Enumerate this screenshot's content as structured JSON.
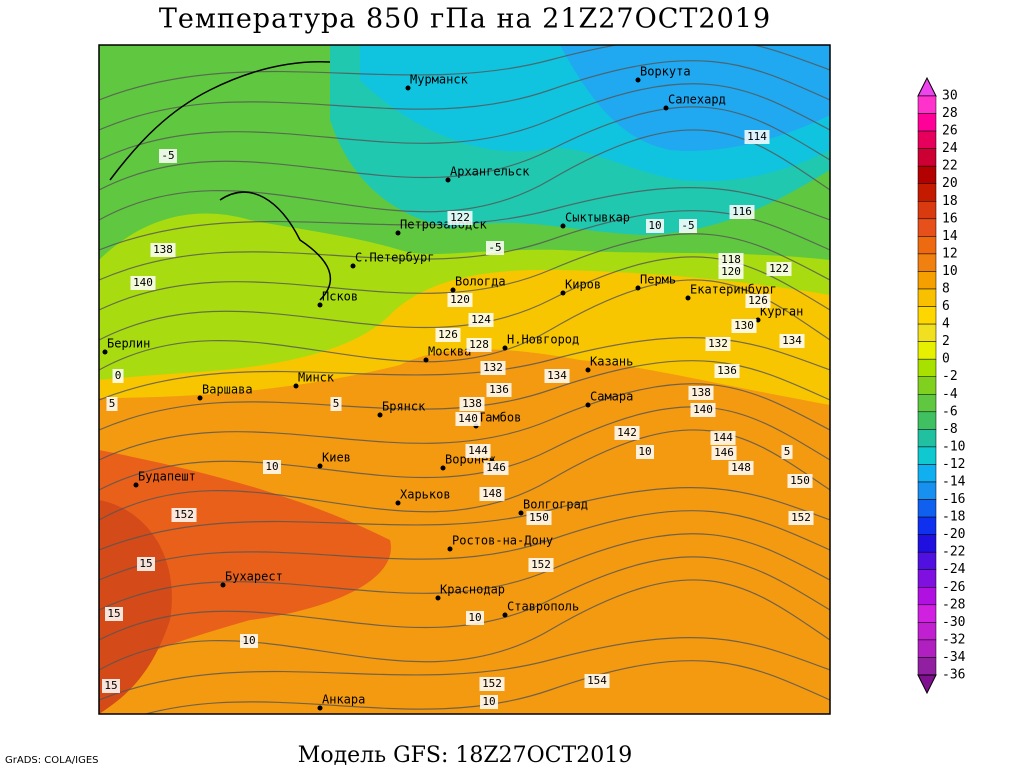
{
  "title": "Температура 850 гПа на 21Z27OCT2019",
  "footer": "Модель GFS: 18Z27OCT2019",
  "credit": "GrADS: COLA/IGES",
  "cities": [
    "Мурманск",
    "Воркута",
    "Салехард",
    "Архангельск",
    "Петрозаводск",
    "Сыктывкар",
    "С.Петербург",
    "Вологда",
    "Киров",
    "Пермь",
    "Екатеринбург",
    "Курган",
    "Псков",
    "Берлин",
    "Москва",
    "Н.Новгород",
    "Казань",
    "Минск",
    "Варшава",
    "Брянск",
    "Тамбов",
    "Самара",
    "Будапешт",
    "Киев",
    "Воронеж",
    "Харьков",
    "Волгоград",
    "Ростов-на-Дону",
    "Бухарест",
    "Краснодар",
    "Ставрополь",
    "Анкара"
  ],
  "contour_labels": [
    "-5",
    "138",
    "140",
    "122",
    "-5",
    "10",
    "-5",
    "116",
    "114",
    "118",
    "120",
    "122",
    "120",
    "124",
    "126",
    "128",
    "130",
    "126",
    "132",
    "134",
    "132",
    "134",
    "136",
    "136",
    "138",
    "138",
    "140",
    "140",
    "142",
    "144",
    "146",
    "144",
    "148",
    "146",
    "150",
    "148",
    "150",
    "152",
    "152",
    "152",
    "154",
    "152",
    "10",
    "10",
    "5",
    "5",
    "15",
    "15",
    "15",
    "10",
    "10",
    "10",
    "0",
    "5"
  ],
  "legend": {
    "levels": [
      30,
      28,
      26,
      24,
      22,
      20,
      18,
      16,
      14,
      12,
      10,
      8,
      6,
      4,
      2,
      0,
      -2,
      -4,
      -6,
      -8,
      -10,
      -12,
      -14,
      -16,
      -18,
      -20,
      -22,
      -24,
      -26,
      -28,
      -30,
      -32,
      -34,
      -36
    ],
    "colors": [
      "#ee44ee",
      "#ff33cc",
      "#ff0099",
      "#e6005c",
      "#cc0033",
      "#b30000",
      "#c41a00",
      "#d93a10",
      "#e6501a",
      "#ee6a10",
      "#f08010",
      "#f5a000",
      "#f9c000",
      "#ffd700",
      "#f0e020",
      "#e6f000",
      "#a8e000",
      "#80d020",
      "#60c840",
      "#40c060",
      "#20c0a0",
      "#10c8d0",
      "#10b0f0",
      "#1890f0",
      "#1060f0",
      "#1030f0",
      "#2010e0",
      "#5010e0",
      "#8010e0",
      "#b010e0",
      "#d020e0",
      "#c020d0",
      "#b020c0",
      "#9020a0",
      "#801090"
    ]
  }
}
